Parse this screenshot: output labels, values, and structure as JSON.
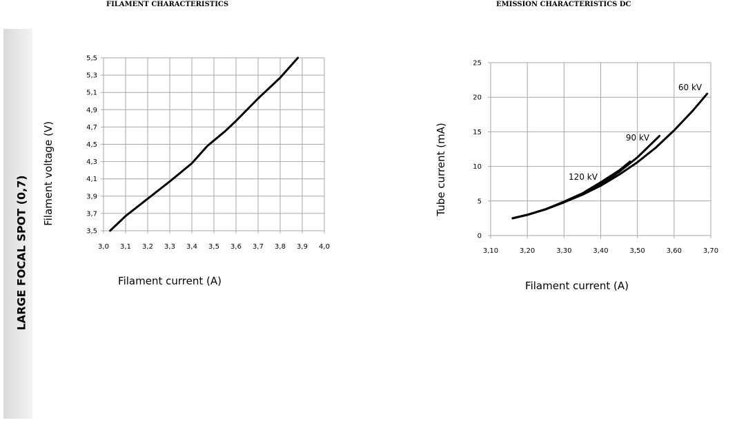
{
  "sidebar": {
    "label": "LARGE FOCAL SPOT (0,7)"
  },
  "chart_data": [
    {
      "type": "line",
      "title": "FILAMENT CHARACTERISTICS",
      "xlabel": "Filament current (A)",
      "ylabel": "Filament voltage (V)",
      "xlim": [
        3.0,
        4.0
      ],
      "ylim": [
        3.5,
        5.5
      ],
      "xticks": [
        "3,0",
        "3,1",
        "3,2",
        "3,3",
        "3,4",
        "3,5",
        "3,6",
        "3,7",
        "3,8",
        "3,9",
        "4,0"
      ],
      "yticks": [
        "3,5",
        "3,7",
        "3,9",
        "4,1",
        "4,3",
        "4,5",
        "4,7",
        "4,9",
        "5,1",
        "5,3",
        "5,5"
      ],
      "grid": true,
      "series": [
        {
          "name": "",
          "x": [
            3.03,
            3.1,
            3.2,
            3.3,
            3.4,
            3.47,
            3.55,
            3.6,
            3.7,
            3.8,
            3.88
          ],
          "y": [
            3.5,
            3.67,
            3.87,
            4.07,
            4.28,
            4.48,
            4.65,
            4.77,
            5.03,
            5.27,
            5.5
          ]
        }
      ]
    },
    {
      "type": "line",
      "title": "EMISSION CHARACTERISTICS DC",
      "xlabel": "Filament current (A)",
      "ylabel": "Tube current (mA)",
      "xlim": [
        3.1,
        3.7
      ],
      "ylim": [
        0,
        25
      ],
      "xticks": [
        "3,10",
        "3,20",
        "3,30",
        "3,40",
        "3,50",
        "3,60",
        "3,70"
      ],
      "yticks": [
        "0",
        "5",
        "10",
        "15",
        "20",
        "25"
      ],
      "grid": true,
      "series": [
        {
          "name": "60 kV",
          "x": [
            3.16,
            3.2,
            3.25,
            3.3,
            3.35,
            3.4,
            3.45,
            3.5,
            3.55,
            3.6,
            3.65,
            3.69
          ],
          "y": [
            2.5,
            3.0,
            3.8,
            4.8,
            5.9,
            7.2,
            8.8,
            10.6,
            12.7,
            15.2,
            18.0,
            20.5
          ]
        },
        {
          "name": "90 kV",
          "x": [
            3.16,
            3.2,
            3.25,
            3.3,
            3.35,
            3.4,
            3.45,
            3.5,
            3.56
          ],
          "y": [
            2.5,
            3.0,
            3.8,
            4.8,
            6.0,
            7.4,
            9.2,
            11.3,
            14.4
          ]
        },
        {
          "name": "120 kV",
          "x": [
            3.16,
            3.2,
            3.25,
            3.3,
            3.35,
            3.4,
            3.45,
            3.48
          ],
          "y": [
            2.5,
            3.0,
            3.8,
            4.9,
            6.1,
            7.7,
            9.4,
            10.7
          ]
        }
      ]
    }
  ]
}
